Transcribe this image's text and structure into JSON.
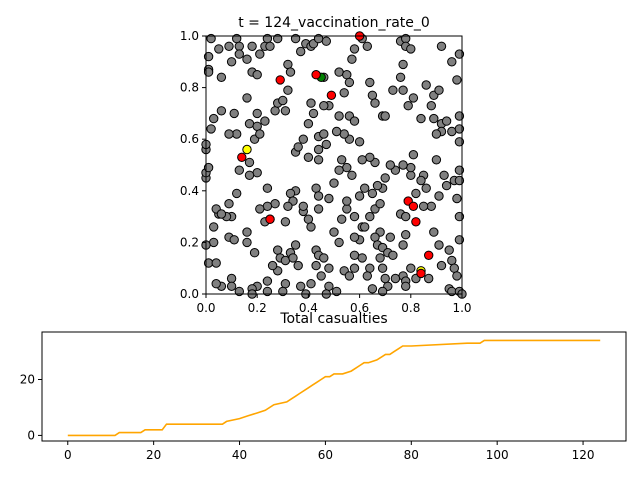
{
  "chart_data": [
    {
      "type": "scatter",
      "title": "t = 124_vaccination_rate_0",
      "xlim": [
        0,
        1
      ],
      "ylim": [
        0,
        1
      ],
      "xticks": [
        "0.0",
        "0.2",
        "0.4",
        "0.6",
        "0.8",
        "1.0"
      ],
      "yticks": [
        "0.0",
        "0.2",
        "0.4",
        "0.6",
        "0.8",
        "1.0"
      ],
      "grid": false,
      "colors": {
        "susceptible": "#808080",
        "infected": "#ff0000",
        "yellow": "#ffff00",
        "green": "#008000"
      },
      "points": {
        "gray": [
          [
            0.02,
            0.99
          ],
          [
            0.01,
            0.92
          ],
          [
            0.01,
            0.87
          ],
          [
            0.01,
            0.86
          ],
          [
            0.05,
            0.95
          ],
          [
            0.06,
            0.84
          ],
          [
            0.09,
            0.96
          ],
          [
            0.12,
            0.99
          ],
          [
            0.13,
            0.96
          ],
          [
            0.16,
            0.91
          ],
          [
            0.18,
            0.96
          ],
          [
            0.21,
            0.93
          ],
          [
            0.23,
            0.96
          ],
          [
            0.28,
            0.99
          ],
          [
            0.24,
            0.99
          ],
          [
            0.25,
            0.96
          ],
          [
            0.18,
            0.86
          ],
          [
            0.2,
            0.85
          ],
          [
            0.1,
            0.9
          ],
          [
            0.16,
            0.76
          ],
          [
            0.03,
            0.68
          ],
          [
            0.02,
            0.64
          ],
          [
            0.06,
            0.71
          ],
          [
            0.11,
            0.7
          ],
          [
            0.12,
            0.62
          ],
          [
            0.09,
            0.62
          ],
          [
            0.17,
            0.66
          ],
          [
            0.2,
            0.65
          ],
          [
            0.19,
            0.6
          ],
          [
            0.21,
            0.62
          ],
          [
            0.23,
            0.67
          ],
          [
            0.2,
            0.7
          ],
          [
            0.27,
            0.71
          ],
          [
            0.28,
            0.74
          ],
          [
            0.3,
            0.75
          ],
          [
            0.32,
            0.79
          ],
          [
            0.31,
            0.71
          ],
          [
            0.32,
            0.89
          ],
          [
            0.33,
            0.86
          ],
          [
            0.35,
            0.99
          ],
          [
            0.37,
            0.94
          ],
          [
            0.39,
            0.97
          ],
          [
            0.41,
            0.96
          ],
          [
            0.42,
            0.97
          ],
          [
            0.47,
            0.98
          ],
          [
            0.44,
            0.99
          ],
          [
            0.46,
            0.84
          ],
          [
            0.52,
            0.86
          ],
          [
            0.55,
            0.85
          ],
          [
            0.56,
            0.82
          ],
          [
            0.54,
            0.78
          ],
          [
            0.57,
            0.91
          ],
          [
            0.58,
            0.95
          ],
          [
            0.63,
            0.96
          ],
          [
            0.61,
            0.99
          ],
          [
            0.64,
            0.82
          ],
          [
            0.65,
            0.77
          ],
          [
            0.66,
            0.74
          ],
          [
            0.69,
            0.69
          ],
          [
            0.7,
            0.69
          ],
          [
            0.73,
            0.79
          ],
          [
            0.76,
            0.84
          ],
          [
            0.77,
            0.89
          ],
          [
            0.76,
            0.98
          ],
          [
            0.78,
            0.99
          ],
          [
            0.78,
            0.96
          ],
          [
            0.8,
            0.95
          ],
          [
            0.77,
            0.79
          ],
          [
            0.79,
            0.73
          ],
          [
            0.81,
            0.76
          ],
          [
            0.84,
            0.68
          ],
          [
            0.86,
            0.81
          ],
          [
            0.88,
            0.73
          ],
          [
            0.89,
            0.77
          ],
          [
            0.91,
            0.79
          ],
          [
            0.92,
            0.96
          ],
          [
            0.96,
            0.9
          ],
          [
            0.99,
            0.93
          ],
          [
            0.98,
            0.83
          ],
          [
            0.92,
            0.66
          ],
          [
            0.94,
            0.67
          ],
          [
            0.92,
            0.63
          ],
          [
            0.9,
            0.62
          ],
          [
            0.89,
            0.68
          ],
          [
            0.96,
            0.63
          ],
          [
            0.99,
            0.64
          ],
          [
            0.99,
            0.59
          ],
          [
            0.99,
            0.69
          ],
          [
            0.9,
            0.52
          ],
          [
            0.93,
            0.46
          ],
          [
            0.97,
            0.44
          ],
          [
            0.94,
            0.42
          ],
          [
            0.99,
            0.48
          ],
          [
            0.99,
            0.44
          ],
          [
            0.91,
            0.38
          ],
          [
            0.88,
            0.34
          ],
          [
            0.86,
            0.41
          ],
          [
            0.85,
            0.34
          ],
          [
            0.82,
            0.39
          ],
          [
            0.8,
            0.46
          ],
          [
            0.8,
            0.49
          ],
          [
            0.81,
            0.54
          ],
          [
            0.77,
            0.5
          ],
          [
            0.74,
            0.48
          ],
          [
            0.72,
            0.5
          ],
          [
            0.7,
            0.45
          ],
          [
            0.69,
            0.41
          ],
          [
            0.67,
            0.42
          ],
          [
            0.66,
            0.51
          ],
          [
            0.64,
            0.53
          ],
          [
            0.61,
            0.52
          ],
          [
            0.6,
            0.59
          ],
          [
            0.56,
            0.6
          ],
          [
            0.54,
            0.62
          ],
          [
            0.52,
            0.69
          ],
          [
            0.56,
            0.69
          ],
          [
            0.58,
            0.67
          ],
          [
            0.48,
            0.73
          ],
          [
            0.46,
            0.73
          ],
          [
            0.42,
            0.7
          ],
          [
            0.41,
            0.74
          ],
          [
            0.4,
            0.66
          ],
          [
            0.44,
            0.61
          ],
          [
            0.46,
            0.62
          ],
          [
            0.51,
            0.63
          ],
          [
            0.53,
            0.52
          ],
          [
            0.55,
            0.49
          ],
          [
            0.57,
            0.46
          ],
          [
            0.52,
            0.48
          ],
          [
            0.5,
            0.43
          ],
          [
            0.48,
            0.37
          ],
          [
            0.43,
            0.41
          ],
          [
            0.44,
            0.38
          ],
          [
            0.44,
            0.33
          ],
          [
            0.38,
            0.32
          ],
          [
            0.4,
            0.29
          ],
          [
            0.41,
            0.26
          ],
          [
            0.35,
            0.55
          ],
          [
            0.36,
            0.57
          ],
          [
            0.38,
            0.6
          ],
          [
            0.4,
            0.53
          ],
          [
            0.44,
            0.52
          ],
          [
            0.44,
            0.56
          ],
          [
            0.35,
            0.4
          ],
          [
            0.33,
            0.39
          ],
          [
            0.34,
            0.36
          ],
          [
            0.38,
            0.34
          ],
          [
            0.32,
            0.34
          ],
          [
            0.31,
            0.28
          ],
          [
            0.27,
            0.35
          ],
          [
            0.24,
            0.41
          ],
          [
            0.24,
            0.34
          ],
          [
            0.25,
            0.29
          ],
          [
            0.2,
            0.47
          ],
          [
            0.17,
            0.51
          ],
          [
            0.17,
            0.46
          ],
          [
            0.13,
            0.48
          ],
          [
            0.12,
            0.39
          ],
          [
            0.09,
            0.35
          ],
          [
            0.1,
            0.3
          ],
          [
            0.08,
            0.3
          ],
          [
            0.05,
            0.31
          ],
          [
            0.04,
            0.33
          ],
          [
            0.06,
            0.31
          ],
          [
            0.0,
            0.45
          ],
          [
            0.0,
            0.47
          ],
          [
            0.0,
            0.56
          ],
          [
            0.0,
            0.58
          ],
          [
            0.01,
            0.49
          ],
          [
            0.03,
            0.26
          ],
          [
            0.03,
            0.2
          ],
          [
            0.0,
            0.19
          ],
          [
            0.01,
            0.12
          ],
          [
            0.04,
            0.12
          ],
          [
            0.09,
            0.22
          ],
          [
            0.11,
            0.21
          ],
          [
            0.16,
            0.2
          ],
          [
            0.16,
            0.24
          ],
          [
            0.19,
            0.16
          ],
          [
            0.21,
            0.33
          ],
          [
            0.23,
            0.28
          ],
          [
            0.28,
            0.17
          ],
          [
            0.29,
            0.14
          ],
          [
            0.28,
            0.09
          ],
          [
            0.26,
            0.11
          ],
          [
            0.24,
            0.05
          ],
          [
            0.2,
            0.03
          ],
          [
            0.18,
            0.02
          ],
          [
            0.1,
            0.06
          ],
          [
            0.06,
            0.03
          ],
          [
            0.04,
            0.04
          ],
          [
            0.1,
            0.03
          ],
          [
            0.13,
            0.01
          ],
          [
            0.18,
            0.0
          ],
          [
            0.24,
            0.01
          ],
          [
            0.31,
            0.13
          ],
          [
            0.33,
            0.16
          ],
          [
            0.35,
            0.19
          ],
          [
            0.34,
            0.14
          ],
          [
            0.36,
            0.11
          ],
          [
            0.37,
            0.03
          ],
          [
            0.31,
            0.04
          ],
          [
            0.3,
            0.01
          ],
          [
            0.39,
            0.0
          ],
          [
            0.41,
            0.04
          ],
          [
            0.45,
            0.07
          ],
          [
            0.43,
            0.11
          ],
          [
            0.43,
            0.17
          ],
          [
            0.44,
            0.15
          ],
          [
            0.46,
            0.14
          ],
          [
            0.48,
            0.1
          ],
          [
            0.48,
            0.03
          ],
          [
            0.51,
            0.01
          ],
          [
            0.54,
            0.09
          ],
          [
            0.56,
            0.07
          ],
          [
            0.58,
            0.1
          ],
          [
            0.58,
            0.15
          ],
          [
            0.61,
            0.14
          ],
          [
            0.6,
            0.21
          ],
          [
            0.58,
            0.22
          ],
          [
            0.61,
            0.26
          ],
          [
            0.62,
            0.26
          ],
          [
            0.64,
            0.3
          ],
          [
            0.66,
            0.33
          ],
          [
            0.68,
            0.35
          ],
          [
            0.68,
            0.24
          ],
          [
            0.66,
            0.22
          ],
          [
            0.67,
            0.19
          ],
          [
            0.69,
            0.18
          ],
          [
            0.71,
            0.16
          ],
          [
            0.73,
            0.15
          ],
          [
            0.72,
            0.22
          ],
          [
            0.76,
            0.31
          ],
          [
            0.78,
            0.3
          ],
          [
            0.78,
            0.23
          ],
          [
            0.77,
            0.19
          ],
          [
            0.77,
            0.07
          ],
          [
            0.78,
            0.05
          ],
          [
            0.8,
            0.1
          ],
          [
            0.82,
            0.06
          ],
          [
            0.78,
            0.03
          ],
          [
            0.71,
            0.03
          ],
          [
            0.7,
            0.06
          ],
          [
            0.69,
            0.1
          ],
          [
            0.68,
            0.14
          ],
          [
            0.64,
            0.1
          ],
          [
            0.63,
            0.07
          ],
          [
            0.65,
            0.02
          ],
          [
            0.69,
            0.01
          ],
          [
            0.74,
            0.06
          ],
          [
            0.87,
            0.06
          ],
          [
            0.92,
            0.11
          ],
          [
            0.91,
            0.19
          ],
          [
            0.89,
            0.24
          ],
          [
            0.95,
            0.17
          ],
          [
            0.96,
            0.13
          ],
          [
            0.97,
            0.1
          ],
          [
            0.98,
            0.07
          ],
          [
            0.95,
            0.02
          ],
          [
            0.96,
            0.01
          ],
          [
            0.99,
            0.01
          ],
          [
            1.0,
            0.0
          ],
          [
            0.98,
            0.37
          ],
          [
            0.99,
            0.3
          ],
          [
            0.99,
            0.21
          ],
          [
            0.85,
            0.46
          ],
          [
            0.84,
            0.44
          ],
          [
            0.62,
            0.41
          ],
          [
            0.6,
            0.38
          ],
          [
            0.65,
            0.39
          ],
          [
            0.53,
            0.29
          ],
          [
            0.55,
            0.33
          ],
          [
            0.55,
            0.36
          ],
          [
            0.58,
            0.3
          ],
          [
            0.52,
            0.2
          ],
          [
            0.47,
            0.0
          ],
          [
            0.5,
            0.24
          ],
          [
            0.47,
            0.58
          ],
          [
            0.13,
            0.93
          ]
        ],
        "red": [
          [
            0.29,
            0.83
          ],
          [
            0.43,
            0.85
          ],
          [
            0.49,
            0.77
          ],
          [
            0.6,
            1.0
          ],
          [
            0.14,
            0.53
          ],
          [
            0.25,
            0.29
          ],
          [
            0.79,
            0.36
          ],
          [
            0.81,
            0.34
          ],
          [
            0.82,
            0.28
          ],
          [
            0.84,
            0.08
          ],
          [
            0.87,
            0.15
          ]
        ],
        "yellow": [
          [
            0.16,
            0.56
          ],
          [
            0.84,
            0.09
          ]
        ],
        "green": [
          [
            0.45,
            0.84
          ]
        ]
      }
    },
    {
      "type": "line",
      "title": "Total casualties",
      "xlim": [
        -6,
        130
      ],
      "ylim": [
        -2,
        37
      ],
      "xticks": [
        "0",
        "20",
        "40",
        "60",
        "80",
        "100",
        "120"
      ],
      "yticks": [
        "0",
        "20"
      ],
      "grid": false,
      "color": "#ffa500",
      "x": [
        0,
        11,
        12,
        17,
        18,
        22,
        23,
        36,
        37,
        40,
        42,
        44,
        46,
        48,
        51,
        52,
        53,
        54,
        56,
        57,
        58,
        59,
        60,
        61,
        62,
        63,
        64,
        66,
        67,
        68,
        69,
        70,
        72,
        73,
        74,
        75,
        76,
        77,
        78,
        79,
        80,
        93,
        94,
        96,
        97,
        124
      ],
      "y": [
        0,
        0,
        1,
        1,
        2,
        2,
        4,
        4,
        5,
        6,
        7,
        8,
        9,
        11,
        12,
        13,
        14,
        15,
        17,
        18,
        19,
        20,
        21,
        21,
        22,
        22,
        22,
        23,
        24,
        25,
        26,
        26,
        27,
        28,
        29,
        29,
        30,
        31,
        32,
        32,
        32,
        33,
        33,
        33,
        34,
        34
      ]
    }
  ]
}
